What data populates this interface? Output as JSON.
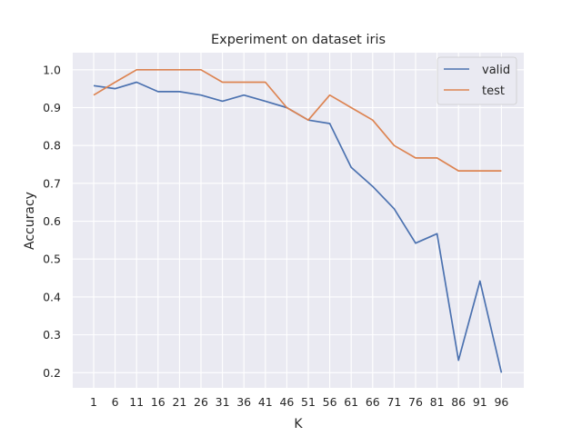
{
  "chart_data": {
    "type": "line",
    "title": "Experiment on dataset iris",
    "xlabel": "K",
    "ylabel": "Accuracy",
    "categories": [
      "1",
      "6",
      "11",
      "16",
      "21",
      "26",
      "31",
      "36",
      "41",
      "46",
      "51",
      "56",
      "61",
      "66",
      "71",
      "76",
      "81",
      "86",
      "91",
      "96"
    ],
    "y_ticks": [
      "0.2",
      "0.3",
      "0.4",
      "0.5",
      "0.6",
      "0.7",
      "0.8",
      "0.9",
      "1.0"
    ],
    "ylim": [
      0.16,
      1.045
    ],
    "grid": true,
    "legend_position": "top-right",
    "series": [
      {
        "name": "valid",
        "color": "#4c72b0",
        "values": [
          0.958,
          0.95,
          0.967,
          0.942,
          0.942,
          0.933,
          0.917,
          0.933,
          0.917,
          0.9,
          0.867,
          0.858,
          0.742,
          0.692,
          0.633,
          0.542,
          0.567,
          0.233,
          0.442,
          0.2
        ]
      },
      {
        "name": "test",
        "color": "#dd8452",
        "values": [
          0.933,
          0.967,
          1.0,
          1.0,
          1.0,
          1.0,
          0.967,
          0.967,
          0.967,
          0.9,
          0.867,
          0.933,
          0.9,
          0.867,
          0.8,
          0.767,
          0.767,
          0.733,
          0.733,
          0.733
        ]
      }
    ]
  }
}
